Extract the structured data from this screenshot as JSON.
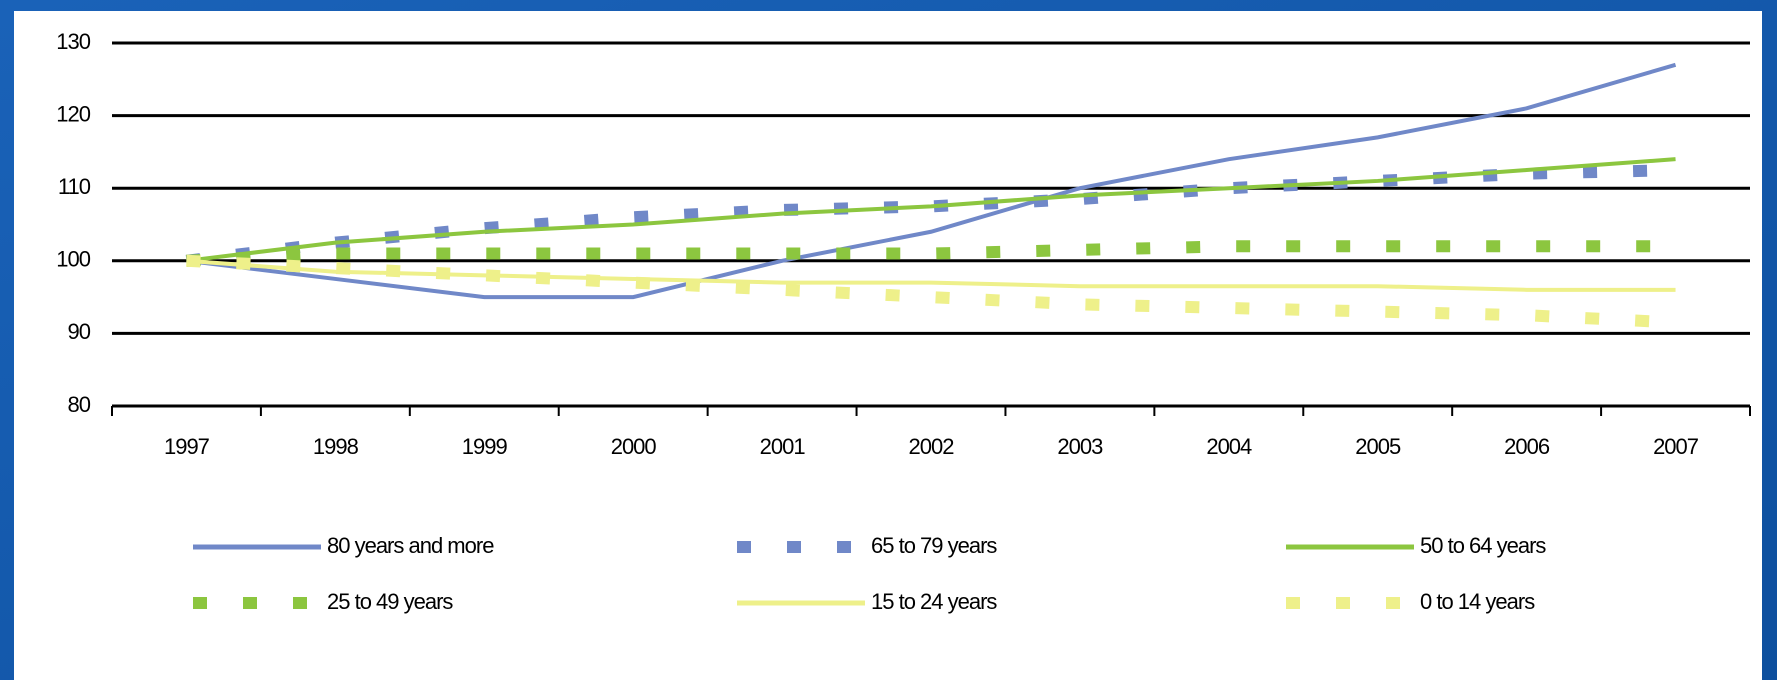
{
  "chart_data": {
    "type": "line",
    "categories": [
      "1997",
      "1998",
      "1999",
      "2000",
      "2001",
      "2002",
      "2003",
      "2004",
      "2005",
      "2006",
      "2007"
    ],
    "series": [
      {
        "name": "80 years and more",
        "color": "#7088c8",
        "dash": false,
        "values": [
          100,
          97.5,
          95,
          95,
          100,
          104,
          110,
          114,
          117,
          121,
          127
        ]
      },
      {
        "name": "65 to 79 years",
        "color": "#7088c8",
        "dash": true,
        "values": [
          100,
          102.5,
          104.5,
          106,
          107,
          107.5,
          108.5,
          110,
          111,
          112,
          112.5
        ]
      },
      {
        "name": "50 to 64 years",
        "color": "#8cc63f",
        "dash": false,
        "values": [
          100,
          102.5,
          104,
          105,
          106.5,
          107.5,
          109,
          110,
          111,
          112.5,
          114
        ]
      },
      {
        "name": "25 to 49 years",
        "color": "#8cc63f",
        "dash": true,
        "values": [
          100,
          101,
          101,
          101,
          101,
          101,
          101.5,
          102,
          102,
          102,
          102
        ]
      },
      {
        "name": "15 to 24 years",
        "color": "#eef08a",
        "dash": false,
        "values": [
          100,
          98.5,
          98,
          97.5,
          97,
          97,
          96.5,
          96.5,
          96.5,
          96,
          96
        ]
      },
      {
        "name": "0 to 14 years",
        "color": "#eef08a",
        "dash": true,
        "values": [
          100,
          99,
          98,
          97,
          96,
          95,
          94,
          93.5,
          93,
          92.5,
          91.5
        ]
      }
    ],
    "ylim": [
      80,
      130
    ],
    "yticks": [
      80,
      90,
      100,
      110,
      120,
      130
    ],
    "grid": true
  }
}
